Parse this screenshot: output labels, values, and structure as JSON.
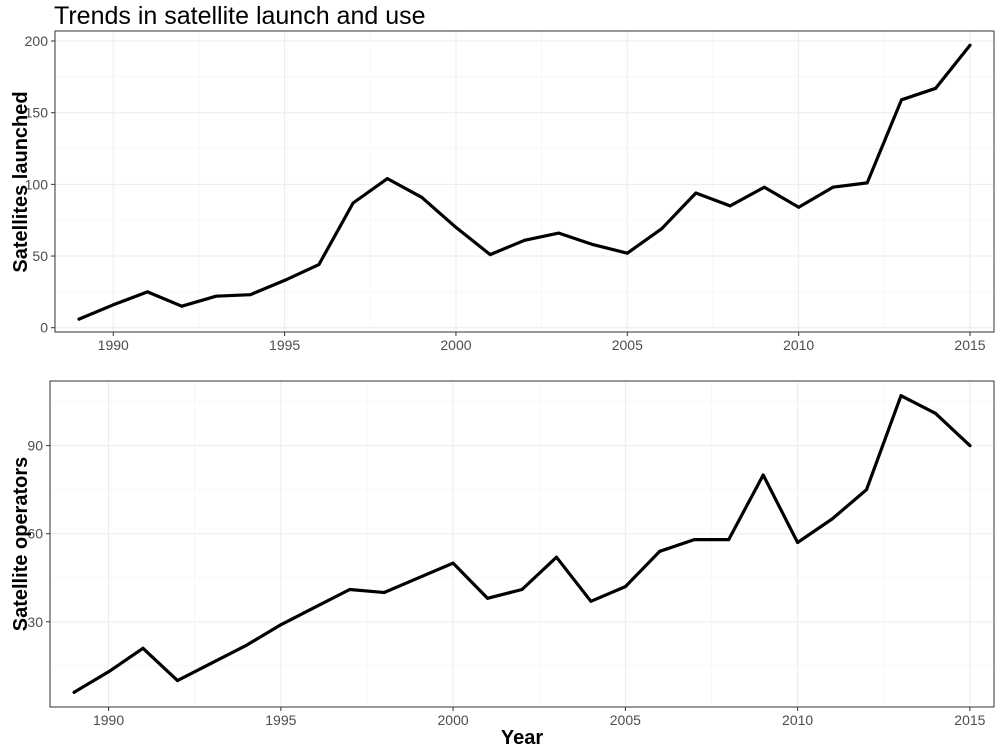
{
  "chart_data": [
    {
      "type": "line",
      "title": "Trends in satellite launch and use",
      "xlabel": "",
      "ylabel": "Satellites launched",
      "xlim": [
        1988.3,
        2015.7
      ],
      "ylim": [
        -3,
        207
      ],
      "x_ticks": [
        1990,
        1995,
        2000,
        2005,
        2010,
        2015
      ],
      "y_ticks": [
        0,
        50,
        100,
        150,
        200
      ],
      "grid": true,
      "series": [
        {
          "x": [
            1989,
            1990,
            1991,
            1992,
            1993,
            1994,
            1995,
            1996,
            1997,
            1998,
            1999,
            2000,
            2001,
            2002,
            2003,
            2004,
            2005,
            2006,
            2007,
            2008,
            2009,
            2010,
            2011,
            2012,
            2013,
            2014,
            2015
          ],
          "values": [
            6,
            16,
            25,
            15,
            22,
            23,
            33,
            44,
            87,
            104,
            91,
            70,
            51,
            61,
            66,
            58,
            52,
            69,
            94,
            85,
            98,
            84,
            98,
            101,
            159,
            167,
            197
          ]
        }
      ]
    },
    {
      "type": "line",
      "title": "",
      "xlabel": "Year",
      "ylabel": "Satellite operators",
      "xlim": [
        1988.3,
        2015.7
      ],
      "ylim": [
        1,
        112
      ],
      "x_ticks": [
        1990,
        1995,
        2000,
        2005,
        2010,
        2015
      ],
      "y_ticks": [
        30,
        60,
        90
      ],
      "grid": true,
      "series": [
        {
          "x": [
            1989,
            1990,
            1991,
            1992,
            1993,
            1994,
            1995,
            1996,
            1997,
            1998,
            1999,
            2000,
            2001,
            2002,
            2003,
            2004,
            2005,
            2006,
            2007,
            2008,
            2009,
            2010,
            2011,
            2012,
            2013,
            2014,
            2015
          ],
          "values": [
            6,
            13,
            21,
            10,
            16,
            22,
            29,
            35,
            41,
            40,
            45,
            50,
            38,
            41,
            52,
            37,
            42,
            54,
            58,
            58,
            80,
            57,
            65,
            75,
            107,
            101,
            90
          ]
        }
      ]
    }
  ]
}
